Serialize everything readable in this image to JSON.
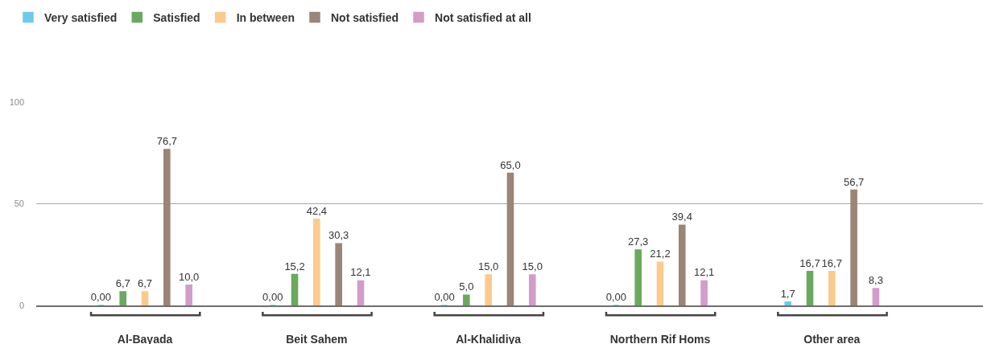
{
  "chart_data": {
    "type": "bar",
    "categories": [
      "Al-Bayada",
      "Beit Sahem",
      "Al-Khalidiya",
      "Northern Rif Homs",
      "Other area"
    ],
    "series": [
      {
        "name": "Very satisfied",
        "color": "#6dcbea",
        "values": [
          0,
          0,
          0,
          0,
          1.7
        ],
        "value_labels": [
          "0,00",
          "0,00",
          "0,00",
          "0,00",
          "1,7"
        ]
      },
      {
        "name": "Satisfied",
        "color": "#6aa95e",
        "values": [
          6.7,
          15.2,
          5.0,
          27.3,
          16.7
        ],
        "value_labels": [
          "6,7",
          "15,2",
          "5,0",
          "27,3",
          "16,7"
        ]
      },
      {
        "name": "In between",
        "color": "#fcca8c",
        "values": [
          6.7,
          42.4,
          15.0,
          21.2,
          16.7
        ],
        "value_labels": [
          "6,7",
          "42,4",
          "15,0",
          "21,2",
          "16,7"
        ]
      },
      {
        "name": "Not satisfied",
        "color": "#9a8577",
        "values": [
          76.7,
          30.3,
          65.0,
          39.4,
          56.7
        ],
        "value_labels": [
          "76,7",
          "30,3",
          "65,0",
          "39,4",
          "56,7"
        ]
      },
      {
        "name": "Not satisfied at all",
        "color": "#d39cc9",
        "values": [
          10.0,
          12.1,
          15.0,
          12.1,
          8.3
        ],
        "value_labels": [
          "10,0",
          "12,1",
          "15,0",
          "12,1",
          "8,3"
        ]
      }
    ],
    "ylim": [
      0,
      100
    ],
    "yticks": [
      0,
      50,
      100
    ],
    "grid": "y",
    "legend": "top left"
  }
}
